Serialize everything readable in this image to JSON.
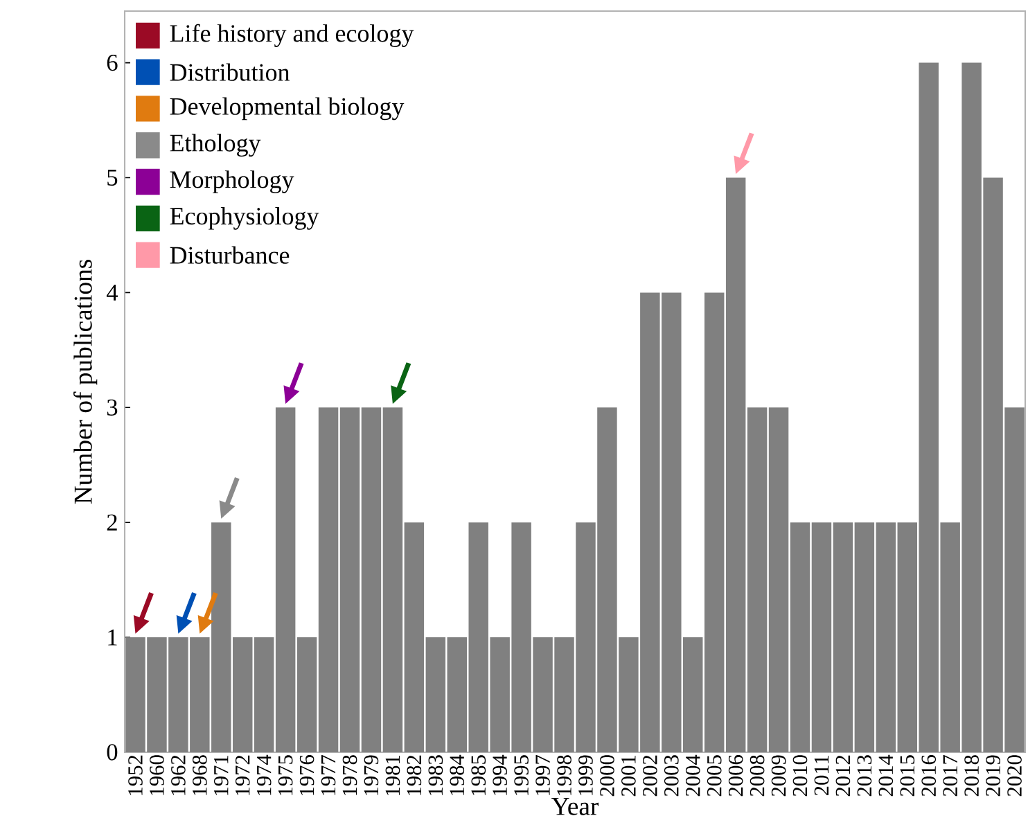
{
  "chart_data": {
    "type": "bar",
    "xlabel": "Year",
    "ylabel": "Number of publications",
    "categories": [
      "1952",
      "1960",
      "1962",
      "1968",
      "1971",
      "1972",
      "1974",
      "1975",
      "1976",
      "1977",
      "1978",
      "1979",
      "1981",
      "1982",
      "1983",
      "1984",
      "1985",
      "1994",
      "1995",
      "1997",
      "1998",
      "1999",
      "2000",
      "2001",
      "2002",
      "2003",
      "2004",
      "2005",
      "2006",
      "2008",
      "2009",
      "2010",
      "2011",
      "2012",
      "2013",
      "2014",
      "2015",
      "2016",
      "2017",
      "2018",
      "2019",
      "2020"
    ],
    "values": [
      1,
      1,
      1,
      1,
      2,
      1,
      1,
      3,
      1,
      3,
      3,
      3,
      3,
      2,
      1,
      1,
      2,
      1,
      2,
      1,
      1,
      2,
      3,
      1,
      4,
      4,
      1,
      4,
      5,
      3,
      3,
      2,
      2,
      2,
      2,
      2,
      2,
      6,
      2,
      6,
      5,
      3
    ],
    "color": "#808080",
    "ylim": [
      0,
      6.45
    ],
    "yticks": [
      0,
      1,
      2,
      3,
      4,
      5,
      6
    ],
    "annotations": [
      "Life history and ecology",
      "Distribution",
      "Developmental biology",
      "Ethology",
      "Morphology",
      "Ecophysiology",
      "Disturbance"
    ]
  }
}
